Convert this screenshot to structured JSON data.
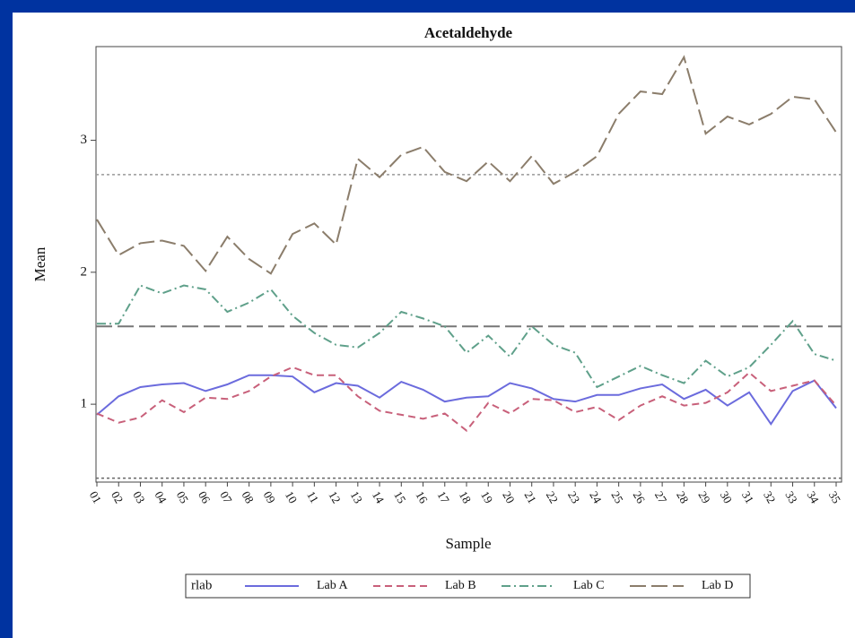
{
  "chart_data": {
    "type": "line",
    "title": "Acetaldehyde",
    "xlabel": "Sample",
    "ylabel": "Mean",
    "categories": [
      "01",
      "02",
      "03",
      "04",
      "05",
      "06",
      "07",
      "08",
      "09",
      "10",
      "11",
      "12",
      "13",
      "14",
      "15",
      "16",
      "17",
      "18",
      "19",
      "20",
      "21",
      "22",
      "23",
      "24",
      "25",
      "26",
      "27",
      "28",
      "29",
      "30",
      "31",
      "32",
      "33",
      "34",
      "35"
    ],
    "series": [
      {
        "name": "Lab A",
        "color": "#6b6bdd",
        "dash": "solid",
        "values": [
          0.92,
          1.06,
          1.13,
          1.15,
          1.16,
          1.1,
          1.15,
          1.22,
          1.22,
          1.21,
          1.09,
          1.16,
          1.14,
          1.05,
          1.17,
          1.11,
          1.02,
          1.05,
          1.06,
          1.16,
          1.12,
          1.04,
          1.02,
          1.07,
          1.07,
          1.12,
          1.15,
          1.04,
          1.11,
          0.99,
          1.09,
          0.85,
          1.1,
          1.18,
          0.97
        ]
      },
      {
        "name": "Lab B",
        "color": "#c8607a",
        "dash": "dashed",
        "values": [
          0.93,
          0.86,
          0.9,
          1.03,
          0.94,
          1.05,
          1.04,
          1.1,
          1.21,
          1.28,
          1.22,
          1.22,
          1.06,
          0.95,
          0.92,
          0.89,
          0.93,
          0.8,
          1.01,
          0.93,
          1.04,
          1.03,
          0.94,
          0.98,
          0.88,
          0.99,
          1.06,
          0.99,
          1.01,
          1.09,
          1.24,
          1.1,
          1.14,
          1.18,
          0.99
        ]
      },
      {
        "name": "Lab C",
        "color": "#5fa08a",
        "dash": "dashdot",
        "values": [
          1.61,
          1.61,
          1.9,
          1.84,
          1.9,
          1.87,
          1.7,
          1.77,
          1.87,
          1.67,
          1.54,
          1.45,
          1.43,
          1.54,
          1.7,
          1.65,
          1.59,
          1.39,
          1.52,
          1.36,
          1.59,
          1.45,
          1.39,
          1.13,
          1.21,
          1.29,
          1.22,
          1.16,
          1.33,
          1.21,
          1.28,
          1.45,
          1.63,
          1.38,
          1.33
        ]
      },
      {
        "name": "Lab D",
        "color": "#8b7d6b",
        "dash": "longdash",
        "values": [
          2.4,
          2.13,
          2.22,
          2.24,
          2.2,
          2.01,
          2.27,
          2.1,
          1.99,
          2.29,
          2.37,
          2.21,
          2.86,
          2.72,
          2.89,
          2.95,
          2.76,
          2.69,
          2.84,
          2.69,
          2.88,
          2.67,
          2.76,
          2.88,
          3.2,
          3.37,
          3.35,
          3.63,
          3.05,
          3.18,
          3.12,
          3.2,
          3.33,
          3.31,
          3.06
        ]
      }
    ],
    "reference_lines": [
      {
        "value": 2.74,
        "color": "#999999",
        "dash": "dotted"
      },
      {
        "value": 1.59,
        "color": "#777777",
        "dash": "longdash"
      },
      {
        "value": 0.44,
        "color": "#666666",
        "dash": "dotted"
      }
    ],
    "ylim": [
      0.41,
      3.71
    ],
    "yticks": [
      1,
      2,
      3
    ],
    "legend_title": "rlab",
    "legend": "bottom"
  }
}
